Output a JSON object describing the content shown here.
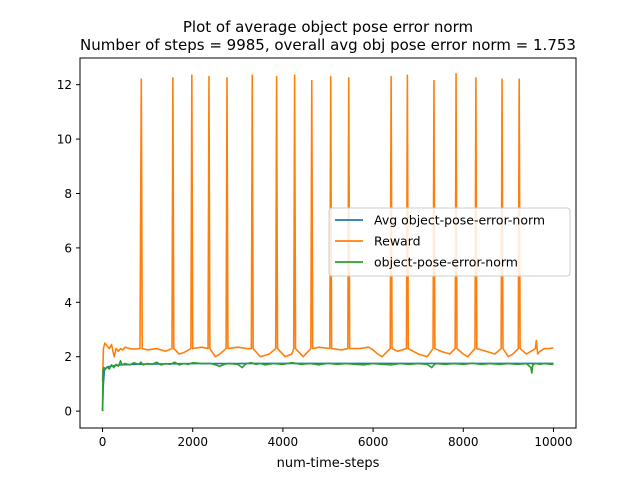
{
  "chart_data": {
    "type": "line",
    "title": "Plot of average object pose error norm",
    "subtitle": "Number of steps = 9985, overall avg obj pose error norm = 1.753",
    "xlabel": "num-time-steps",
    "ylabel": "",
    "xlim": [
      -500,
      10500
    ],
    "ylim": [
      -0.62,
      12.98
    ],
    "xticks": [
      0,
      2000,
      4000,
      6000,
      8000,
      10000
    ],
    "yticks": [
      0,
      2,
      4,
      6,
      8,
      10,
      12
    ],
    "xtick_labels": [
      "0",
      "2000",
      "4000",
      "6000",
      "8000",
      "10000"
    ],
    "ytick_labels": [
      "0",
      "2",
      "4",
      "6",
      "8",
      "10",
      "12"
    ],
    "grid": false,
    "legend_position": "center-right",
    "series": [
      {
        "name": "Avg object-pose-error-norm",
        "color": "#1f77b4",
        "points": [
          [
            0,
            0.0
          ],
          [
            15,
            0.9
          ],
          [
            40,
            1.5
          ],
          [
            100,
            1.62
          ],
          [
            200,
            1.66
          ],
          [
            400,
            1.7
          ],
          [
            700,
            1.72
          ],
          [
            1000,
            1.73
          ],
          [
            1500,
            1.74
          ],
          [
            2000,
            1.75
          ],
          [
            3000,
            1.75
          ],
          [
            4000,
            1.755
          ],
          [
            6000,
            1.755
          ],
          [
            8000,
            1.755
          ],
          [
            10000,
            1.753
          ]
        ]
      },
      {
        "name": "Reward",
        "color": "#ff7f0e",
        "points": [
          [
            0,
            1.1
          ],
          [
            20,
            2.3
          ],
          [
            50,
            2.5
          ],
          [
            100,
            2.4
          ],
          [
            150,
            2.3
          ],
          [
            200,
            2.45
          ],
          [
            230,
            2.2
          ],
          [
            260,
            2.0
          ],
          [
            300,
            2.3
          ],
          [
            350,
            2.2
          ],
          [
            400,
            2.3
          ],
          [
            450,
            2.25
          ],
          [
            500,
            2.35
          ],
          [
            600,
            2.3
          ],
          [
            700,
            2.28
          ],
          [
            830,
            2.3
          ],
          [
            860,
            12.2
          ],
          [
            880,
            2.3
          ],
          [
            1000,
            2.25
          ],
          [
            1200,
            2.3
          ],
          [
            1400,
            2.2
          ],
          [
            1540,
            2.3
          ],
          [
            1560,
            12.25
          ],
          [
            1580,
            2.3
          ],
          [
            1700,
            2.1
          ],
          [
            1800,
            2.15
          ],
          [
            1960,
            2.3
          ],
          [
            1980,
            12.35
          ],
          [
            2000,
            2.3
          ],
          [
            2200,
            2.35
          ],
          [
            2340,
            2.3
          ],
          [
            2360,
            12.3
          ],
          [
            2380,
            2.3
          ],
          [
            2500,
            2.0
          ],
          [
            2600,
            2.1
          ],
          [
            2740,
            2.3
          ],
          [
            2760,
            12.25
          ],
          [
            2780,
            2.3
          ],
          [
            3000,
            2.35
          ],
          [
            3200,
            2.3
          ],
          [
            3300,
            2.3
          ],
          [
            3320,
            12.35
          ],
          [
            3340,
            2.3
          ],
          [
            3500,
            2.0
          ],
          [
            3700,
            2.1
          ],
          [
            3840,
            2.3
          ],
          [
            3860,
            12.3
          ],
          [
            3880,
            2.3
          ],
          [
            4050,
            2.0
          ],
          [
            4200,
            2.1
          ],
          [
            4240,
            2.3
          ],
          [
            4260,
            12.35
          ],
          [
            4280,
            2.3
          ],
          [
            4450,
            2.0
          ],
          [
            4620,
            2.3
          ],
          [
            4640,
            12.15
          ],
          [
            4660,
            2.3
          ],
          [
            4800,
            2.35
          ],
          [
            5040,
            2.3
          ],
          [
            5060,
            12.3
          ],
          [
            5080,
            2.3
          ],
          [
            5300,
            2.25
          ],
          [
            5440,
            2.3
          ],
          [
            5460,
            12.25
          ],
          [
            5480,
            2.3
          ],
          [
            5700,
            2.3
          ],
          [
            5900,
            2.35
          ],
          [
            6000,
            2.25
          ],
          [
            6100,
            2.1
          ],
          [
            6200,
            2.0
          ],
          [
            6380,
            2.3
          ],
          [
            6400,
            12.3
          ],
          [
            6420,
            2.3
          ],
          [
            6550,
            2.2
          ],
          [
            6740,
            2.3
          ],
          [
            6760,
            12.35
          ],
          [
            6780,
            2.3
          ],
          [
            7000,
            2.1
          ],
          [
            7200,
            2.0
          ],
          [
            7330,
            2.3
          ],
          [
            7350,
            12.15
          ],
          [
            7370,
            2.3
          ],
          [
            7500,
            2.2
          ],
          [
            7700,
            2.1
          ],
          [
            7820,
            2.3
          ],
          [
            7840,
            12.4
          ],
          [
            7860,
            2.3
          ],
          [
            8000,
            2.1
          ],
          [
            8100,
            2.0
          ],
          [
            8260,
            2.3
          ],
          [
            8280,
            12.25
          ],
          [
            8300,
            2.3
          ],
          [
            8500,
            2.2
          ],
          [
            8700,
            2.1
          ],
          [
            8840,
            2.3
          ],
          [
            8860,
            12.2
          ],
          [
            8880,
            2.3
          ],
          [
            9000,
            2.0
          ],
          [
            9100,
            2.1
          ],
          [
            9220,
            2.3
          ],
          [
            9240,
            12.2
          ],
          [
            9260,
            2.3
          ],
          [
            9400,
            2.1
          ],
          [
            9500,
            2.2
          ],
          [
            9600,
            2.3
          ],
          [
            9620,
            2.6
          ],
          [
            9650,
            2.1
          ],
          [
            9700,
            2.2
          ],
          [
            9800,
            2.3
          ],
          [
            9900,
            2.3
          ],
          [
            10000,
            2.32
          ]
        ]
      },
      {
        "name": "object-pose-error-norm",
        "color": "#2ca02c",
        "points": [
          [
            0,
            0.0
          ],
          [
            10,
            1.5
          ],
          [
            30,
            1.6
          ],
          [
            60,
            1.55
          ],
          [
            100,
            1.62
          ],
          [
            150,
            1.55
          ],
          [
            200,
            1.7
          ],
          [
            250,
            1.6
          ],
          [
            300,
            1.72
          ],
          [
            350,
            1.65
          ],
          [
            400,
            1.85
          ],
          [
            430,
            1.7
          ],
          [
            500,
            1.75
          ],
          [
            600,
            1.7
          ],
          [
            700,
            1.78
          ],
          [
            800,
            1.72
          ],
          [
            850,
            1.8
          ],
          [
            900,
            1.7
          ],
          [
            1000,
            1.75
          ],
          [
            1100,
            1.72
          ],
          [
            1200,
            1.8
          ],
          [
            1300,
            1.7
          ],
          [
            1400,
            1.75
          ],
          [
            1500,
            1.72
          ],
          [
            1600,
            1.8
          ],
          [
            1700,
            1.7
          ],
          [
            1800,
            1.75
          ],
          [
            1900,
            1.72
          ],
          [
            2000,
            1.78
          ],
          [
            2200,
            1.75
          ],
          [
            2400,
            1.75
          ],
          [
            2500,
            1.7
          ],
          [
            2600,
            1.65
          ],
          [
            2700,
            1.72
          ],
          [
            2800,
            1.75
          ],
          [
            3000,
            1.72
          ],
          [
            3100,
            1.6
          ],
          [
            3150,
            1.7
          ],
          [
            3200,
            1.75
          ],
          [
            3300,
            1.78
          ],
          [
            3400,
            1.72
          ],
          [
            3500,
            1.75
          ],
          [
            3600,
            1.7
          ],
          [
            3800,
            1.75
          ],
          [
            4000,
            1.72
          ],
          [
            4200,
            1.78
          ],
          [
            4400,
            1.72
          ],
          [
            4600,
            1.75
          ],
          [
            4800,
            1.7
          ],
          [
            5000,
            1.76
          ],
          [
            5200,
            1.72
          ],
          [
            5400,
            1.75
          ],
          [
            5600,
            1.72
          ],
          [
            5800,
            1.7
          ],
          [
            6000,
            1.75
          ],
          [
            6200,
            1.72
          ],
          [
            6400,
            1.7
          ],
          [
            6600,
            1.75
          ],
          [
            6800,
            1.72
          ],
          [
            7000,
            1.75
          ],
          [
            7200,
            1.72
          ],
          [
            7300,
            1.6
          ],
          [
            7350,
            1.7
          ],
          [
            7400,
            1.75
          ],
          [
            7600,
            1.72
          ],
          [
            7800,
            1.75
          ],
          [
            8000,
            1.72
          ],
          [
            8200,
            1.76
          ],
          [
            8400,
            1.72
          ],
          [
            8600,
            1.75
          ],
          [
            8800,
            1.72
          ],
          [
            9000,
            1.75
          ],
          [
            9200,
            1.72
          ],
          [
            9400,
            1.75
          ],
          [
            9500,
            1.6
          ],
          [
            9520,
            1.4
          ],
          [
            9540,
            1.7
          ],
          [
            9600,
            1.75
          ],
          [
            9700,
            1.72
          ],
          [
            9800,
            1.75
          ],
          [
            9900,
            1.73
          ],
          [
            10000,
            1.72
          ]
        ]
      }
    ]
  }
}
